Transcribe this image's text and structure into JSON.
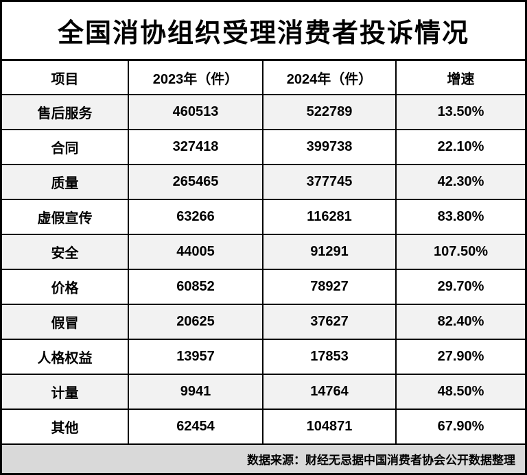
{
  "title": "全国消协组织受理消费者投诉情况",
  "table": {
    "headers": [
      "项目",
      "2023年（件）",
      "2024年（件）",
      "增速"
    ],
    "rows": [
      {
        "item": "售后服务",
        "y2023": "460513",
        "y2024": "522789",
        "growth": "13.50%"
      },
      {
        "item": "合同",
        "y2023": "327418",
        "y2024": "399738",
        "growth": "22.10%"
      },
      {
        "item": "质量",
        "y2023": "265465",
        "y2024": "377745",
        "growth": "42.30%"
      },
      {
        "item": "虚假宣传",
        "y2023": "63266",
        "y2024": "116281",
        "growth": "83.80%"
      },
      {
        "item": "安全",
        "y2023": "44005",
        "y2024": "91291",
        "growth": "107.50%"
      },
      {
        "item": "价格",
        "y2023": "60852",
        "y2024": "78927",
        "growth": "29.70%"
      },
      {
        "item": "假冒",
        "y2023": "20625",
        "y2024": "37627",
        "growth": "82.40%"
      },
      {
        "item": "人格权益",
        "y2023": "13957",
        "y2024": "17853",
        "growth": "27.90%"
      },
      {
        "item": "计量",
        "y2023": "9941",
        "y2024": "14764",
        "growth": "48.50%"
      },
      {
        "item": "其他",
        "y2023": "62454",
        "y2024": "104871",
        "growth": "67.90%"
      }
    ]
  },
  "footer": "数据来源：财经无忌据中国消费者协会公开数据整理",
  "colors": {
    "border": "#000000",
    "footer_bg": "#d9d9d9",
    "stripe_bg": "#f2f2f2",
    "text": "#000000"
  },
  "chart_data": {
    "type": "table",
    "title": "全国消协组织受理消费者投诉情况",
    "columns": [
      "项目",
      "2023年（件）",
      "2024年（件）",
      "增速"
    ],
    "rows": [
      [
        "售后服务",
        460513,
        522789,
        "13.50%"
      ],
      [
        "合同",
        327418,
        399738,
        "22.10%"
      ],
      [
        "质量",
        265465,
        377745,
        "42.30%"
      ],
      [
        "虚假宣传",
        63266,
        116281,
        "83.80%"
      ],
      [
        "安全",
        44005,
        91291,
        "107.50%"
      ],
      [
        "价格",
        60852,
        78927,
        "29.70%"
      ],
      [
        "假冒",
        20625,
        37627,
        "82.40%"
      ],
      [
        "人格权益",
        13957,
        17853,
        "27.90%"
      ],
      [
        "计量",
        9941,
        14764,
        "48.50%"
      ],
      [
        "其他",
        62454,
        104871,
        "67.90%"
      ]
    ],
    "source": "数据来源：财经无忌据中国消费者协会公开数据整理"
  }
}
